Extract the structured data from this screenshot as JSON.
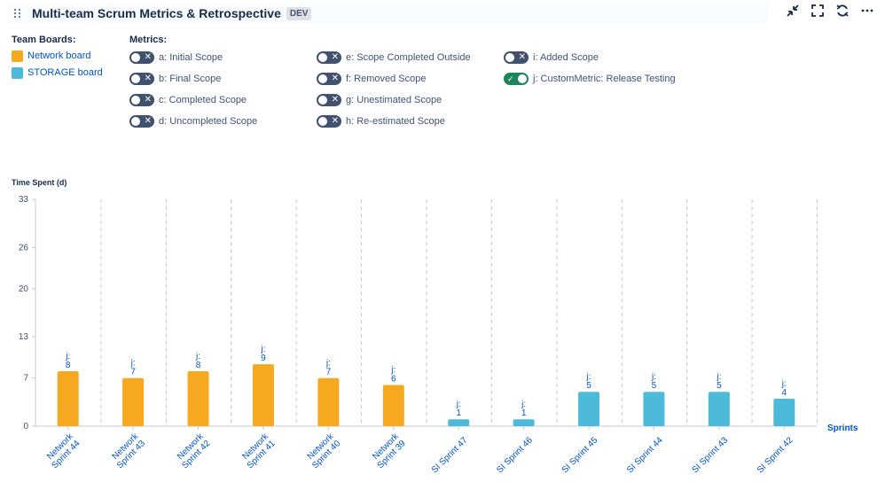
{
  "header": {
    "title": "Multi-team Scrum Metrics & Retrospective",
    "badge": "DEV"
  },
  "boards": {
    "label": "Team Boards:",
    "items": [
      {
        "name": "Network board",
        "color": "#f6a91f"
      },
      {
        "name": "STORAGE board",
        "color": "#4dbad9"
      }
    ]
  },
  "metrics": {
    "label": "Metrics:",
    "items": [
      {
        "label": "a: Initial Scope",
        "enabled": false
      },
      {
        "label": "b: Final Scope",
        "enabled": false
      },
      {
        "label": "c: Completed Scope",
        "enabled": false
      },
      {
        "label": "d: Uncompleted Scope",
        "enabled": false
      },
      {
        "label": "e: Scope Completed Outside",
        "enabled": false
      },
      {
        "label": "f: Removed Scope",
        "enabled": false
      },
      {
        "label": "g: Unestimated Scope",
        "enabled": false
      },
      {
        "label": "h: Re-estimated Scope",
        "enabled": false
      },
      {
        "label": "i: Added Scope",
        "enabled": false
      },
      {
        "label": "j: CustomMetric: Release Testing",
        "enabled": true
      }
    ]
  },
  "chart_data": {
    "type": "bar",
    "ylabel": "Time Spent (d)",
    "xlabel": "Sprints",
    "yticks": [
      0,
      7,
      13,
      20,
      26,
      33
    ],
    "ylim": [
      0,
      33
    ],
    "grid": "vertical dashed",
    "series_prefix": "j:",
    "categories": [
      "Network Sprint 44",
      "Network Sprint 43",
      "Network Sprint 42",
      "Network Sprint 41",
      "Network Sprint 40",
      "Network Sprint 39",
      "SI Sprint 47",
      "SI Sprint 46",
      "SI Sprint 45",
      "SI Sprint 44",
      "SI Sprint 43",
      "SI Sprint 42"
    ],
    "values": [
      8,
      7,
      8,
      9,
      7,
      6,
      1,
      1,
      5,
      5,
      5,
      4
    ],
    "boards": [
      "Network board",
      "Network board",
      "Network board",
      "Network board",
      "Network board",
      "Network board",
      "STORAGE board",
      "STORAGE board",
      "STORAGE board",
      "STORAGE board",
      "STORAGE board",
      "STORAGE board"
    ]
  }
}
